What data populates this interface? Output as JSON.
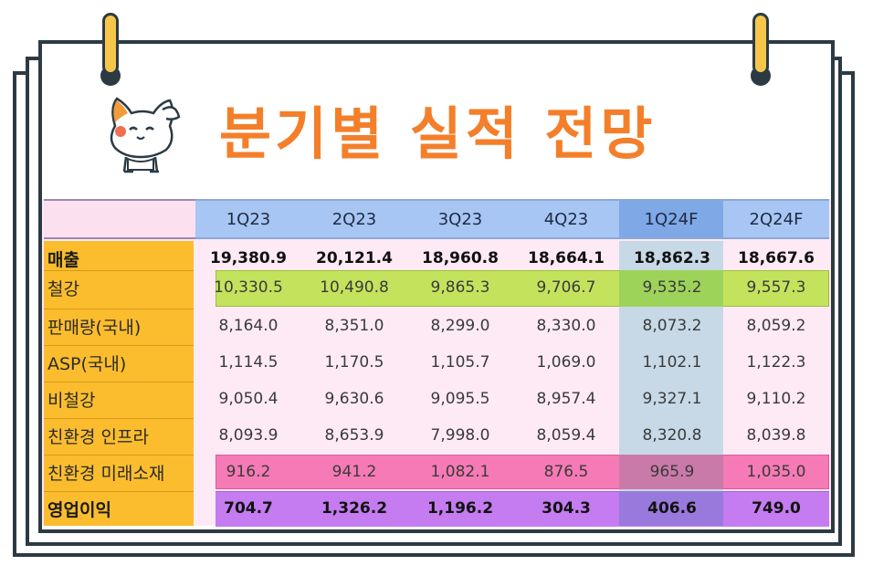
{
  "title": "분기별 실적 전망",
  "colors": {
    "title": "#f47f2a",
    "header": "#a8c6f3",
    "forecast_header": "#7fa8e6",
    "label_column": "#fbbd2e",
    "steel_band": "#c4e35d",
    "future_band": "#f57ab5",
    "op_income_band": "#c47cf0",
    "background": "#fdeaf5"
  },
  "icons": {
    "mascot": "cat-saluting-icon"
  },
  "chart_data": {
    "type": "table",
    "columns": [
      "1Q23",
      "2Q23",
      "3Q23",
      "4Q23",
      "1Q24F",
      "2Q24F"
    ],
    "rows": [
      {
        "label": "매출",
        "bold": true,
        "values": [
          "19,380.9",
          "20,121.4",
          "18,960.8",
          "18,664.1",
          "18,862.3",
          "18,667.6"
        ]
      },
      {
        "label": "철강",
        "bold": false,
        "values": [
          "10,330.5",
          "10,490.8",
          "9,865.3",
          "9,706.7",
          "9,535.2",
          "9,557.3"
        ]
      },
      {
        "label": "판매량(국내)",
        "bold": false,
        "values": [
          "8,164.0",
          "8,351.0",
          "8,299.0",
          "8,330.0",
          "8,073.2",
          "8,059.2"
        ]
      },
      {
        "label": "ASP(국내)",
        "bold": false,
        "values": [
          "1,114.5",
          "1,170.5",
          "1,105.7",
          "1,069.0",
          "1,102.1",
          "1,122.3"
        ]
      },
      {
        "label": "비철강",
        "bold": false,
        "values": [
          "9,050.4",
          "9,630.6",
          "9,095.5",
          "8,957.4",
          "9,327.1",
          "9,110.2"
        ]
      },
      {
        "label": "친환경 인프라",
        "bold": false,
        "values": [
          "8,093.9",
          "8,653.9",
          "7,998.0",
          "8,059.4",
          "8,320.8",
          "8,039.8"
        ]
      },
      {
        "label": "친환경 미래소재",
        "bold": false,
        "values": [
          "916.2",
          "941.2",
          "1,082.1",
          "876.5",
          "965.9",
          "1,035.0"
        ]
      },
      {
        "label": "영업이익",
        "bold": true,
        "values": [
          "704.7",
          "1,326.2",
          "1,196.2",
          "304.3",
          "406.6",
          "749.0"
        ]
      }
    ]
  }
}
